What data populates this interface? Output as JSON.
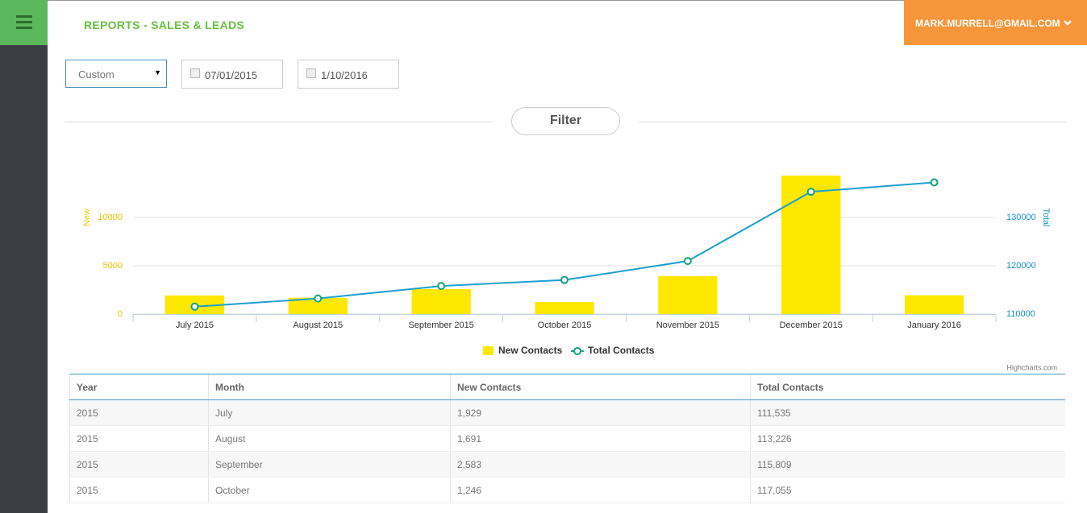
{
  "header": {
    "title": "REPORTS - SALES & LEADS",
    "user": "MARK.MURRELL@GMAIL.COM"
  },
  "filters": {
    "range": "Custom",
    "start_date": "07/01/2015",
    "end_date": "1/10/2016",
    "button": "Filter"
  },
  "chart_data": {
    "type": "bar-line",
    "categories": [
      "July 2015",
      "August 2015",
      "September 2015",
      "October 2015",
      "November 2015",
      "December 2015",
      "January 2016"
    ],
    "series": [
      {
        "name": "New Contacts",
        "color": "#ffe800",
        "type": "bar",
        "axis": "y",
        "values": [
          1929,
          1691,
          2583,
          1246,
          3920,
          14333,
          1950
        ]
      },
      {
        "name": "Total Contacts",
        "color": "#1ba0d0",
        "marker_color": "#11a37e",
        "type": "line",
        "axis": "y2",
        "values": [
          111535,
          113226,
          115809,
          117055,
          120975,
          135308,
          137258
        ]
      }
    ],
    "ylabel": "New",
    "y2label": "Total",
    "ylim": [
      0,
      15000
    ],
    "yticks": [
      0,
      5000,
      10000
    ],
    "y2lim": [
      110000,
      140000
    ],
    "y2ticks": [
      110000,
      120000,
      130000
    ],
    "grid": true,
    "legend": "bottom",
    "credits": "Highcharts.com"
  },
  "table": {
    "columns": [
      "Year",
      "Month",
      "New Contacts",
      "Total Contacts"
    ],
    "rows": [
      [
        "2015",
        "July",
        "1,929",
        "111,535"
      ],
      [
        "2015",
        "August",
        "1,691",
        "113,226"
      ],
      [
        "2015",
        "September",
        "2,583",
        "115,809"
      ],
      [
        "2015",
        "October",
        "1,246",
        "117,055"
      ]
    ]
  }
}
